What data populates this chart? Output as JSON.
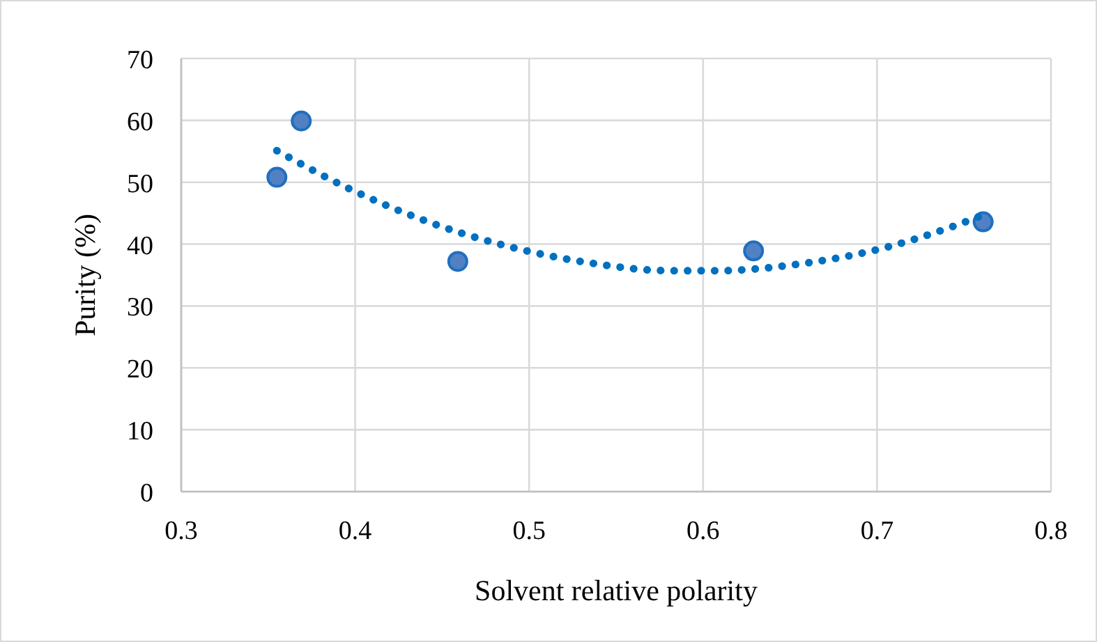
{
  "chart_data": {
    "type": "scatter",
    "xlabel": "Solvent relative polarity",
    "ylabel": "Purity (%)",
    "xlim": [
      0.3,
      0.8
    ],
    "xticks": [
      0.3,
      0.4,
      0.5,
      0.6,
      0.7,
      0.8
    ],
    "ylim": [
      0,
      70
    ],
    "yticks": [
      0,
      10,
      20,
      30,
      40,
      50,
      60,
      70
    ],
    "grid": true,
    "series": [
      {
        "marker": "circle",
        "color": "#5181c2",
        "x": [
          0.355,
          0.369,
          0.459,
          0.629,
          0.761
        ],
        "values": [
          50.8,
          59.9,
          37.2,
          38.9,
          43.6
        ]
      },
      {
        "type": "line",
        "color": "#0070c0",
        "line_style": "dotted",
        "x": [
          0.355,
          0.397,
          0.441,
          0.487,
          0.534,
          0.581,
          0.608,
          0.653,
          0.7,
          0.746,
          0.762
        ],
        "values": [
          55.1,
          48.9,
          43.7,
          39.7,
          37.0,
          35.7,
          35.7,
          36.7,
          39.1,
          43.1,
          44.8
        ]
      }
    ]
  }
}
